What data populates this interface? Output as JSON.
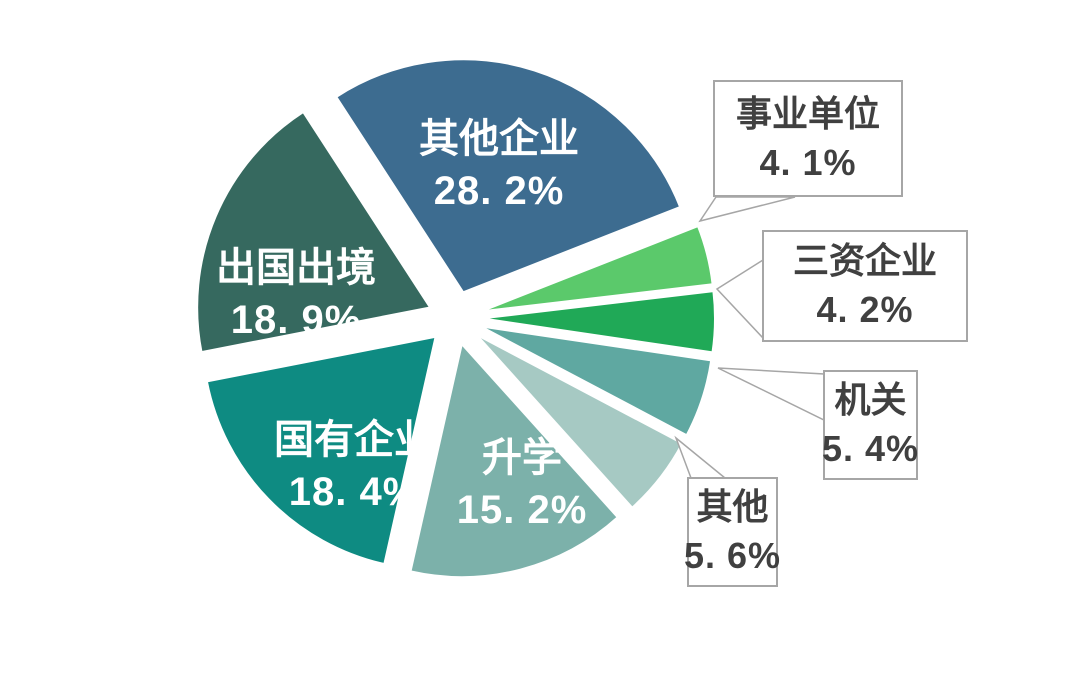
{
  "chart_data": {
    "type": "pie",
    "legend": "none",
    "background": "#ffffff",
    "callout_border_color": "#a6a6a6",
    "callout_text_color": "#404040",
    "inside_label_color": "#ffffff",
    "slices": [
      {
        "label": "其他企业",
        "value": 28.2,
        "pct_text": "28. 2%",
        "color": "#3d6c90",
        "label_style": "inside"
      },
      {
        "label": "事业单位",
        "value": 4.1,
        "pct_text": "4. 1%",
        "color": "#5bc96b",
        "label_style": "callout"
      },
      {
        "label": "三资企业",
        "value": 4.2,
        "pct_text": "4. 2%",
        "color": "#20a957",
        "label_style": "callout"
      },
      {
        "label": "机关",
        "value": 5.4,
        "pct_text": "5. 4%",
        "color": "#5fa8a1",
        "label_style": "callout"
      },
      {
        "label": "其他",
        "value": 5.6,
        "pct_text": "5. 6%",
        "color": "#a6c9c3",
        "label_style": "callout"
      },
      {
        "label": "升学",
        "value": 15.2,
        "pct_text": "15. 2%",
        "color": "#7cb1aa",
        "label_style": "inside"
      },
      {
        "label": "国有企业",
        "value": 18.4,
        "pct_text": "18. 4%",
        "color": "#0e8b82",
        "label_style": "inside"
      },
      {
        "label": "出国出境",
        "value": 18.9,
        "pct_text": "18. 9%",
        "color": "#36695f",
        "label_style": "inside"
      }
    ]
  }
}
